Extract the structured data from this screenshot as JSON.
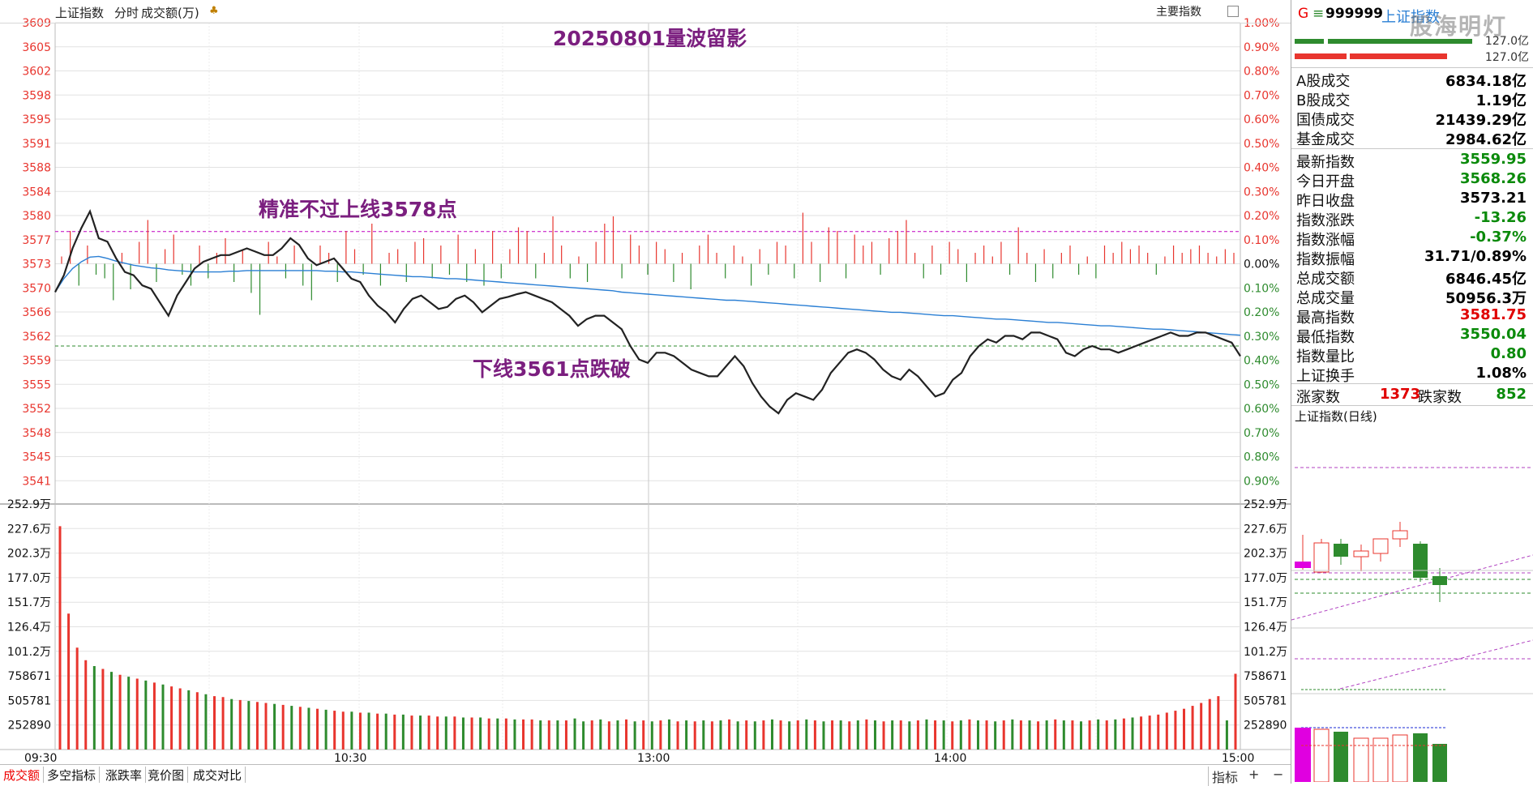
{
  "header": {
    "index_name": "上证指数",
    "mode": "分时",
    "volume_label": "成交额(万)",
    "right_label": "主要指数"
  },
  "annotations": {
    "title": "20250801量波留影",
    "upper_note": "精准不过上线3578点",
    "lower_note": "下线3561点跌破"
  },
  "chart_data": {
    "type": "line",
    "left_axis": [
      "3609",
      "3605",
      "3602",
      "3598",
      "3595",
      "3591",
      "3588",
      "3584",
      "3580",
      "3577",
      "3573",
      "3570",
      "3566",
      "3562",
      "3559",
      "3555",
      "3552",
      "3548",
      "3545",
      "3541"
    ],
    "right_axis": [
      "1.00%",
      "0.90%",
      "0.80%",
      "0.70%",
      "0.60%",
      "0.50%",
      "0.40%",
      "0.30%",
      "0.20%",
      "0.10%",
      "0.00%",
      "0.10%",
      "0.20%",
      "0.30%",
      "0.40%",
      "0.50%",
      "0.60%",
      "0.70%",
      "0.80%",
      "0.90%"
    ],
    "volume_axis": [
      "252.9万",
      "227.6万",
      "202.3万",
      "177.0万",
      "151.7万",
      "126.4万",
      "101.2万",
      "758671",
      "505781",
      "252890"
    ],
    "time_labels": [
      "09:30",
      "10:30",
      "13:00",
      "14:00",
      "15:00"
    ],
    "prev_close": 3573.21,
    "upper_line": 3578,
    "lower_line": 3561,
    "price_series": [
      3569.0,
      3571.5,
      3575.5,
      3578.5,
      3581.0,
      3577.0,
      3576.5,
      3574.0,
      3572.0,
      3571.5,
      3570.0,
      3569.5,
      3567.5,
      3565.5,
      3568.5,
      3570.5,
      3572.5,
      3573.5,
      3574.0,
      3574.5,
      3574.5,
      3575.0,
      3575.5,
      3575.0,
      3574.5,
      3574.5,
      3575.5,
      3577.0,
      3576.0,
      3574.0,
      3573.0,
      3573.5,
      3574.0,
      3572.5,
      3571.0,
      3570.5,
      3568.5,
      3567.0,
      3566.0,
      3564.5,
      3566.5,
      3568.0,
      3568.5,
      3567.5,
      3566.5,
      3566.8,
      3568.0,
      3568.5,
      3567.5,
      3566.0,
      3567.0,
      3568.0,
      3568.3,
      3568.7,
      3569.0,
      3568.5,
      3568.0,
      3567.5,
      3566.5,
      3565.5,
      3564.0,
      3565.0,
      3565.5,
      3565.5,
      3564.5,
      3563.5,
      3561.0,
      3559.0,
      3558.5,
      3560.0,
      3560.0,
      3559.5,
      3558.5,
      3557.5,
      3557.0,
      3556.5,
      3556.5,
      3558.0,
      3559.5,
      3558.0,
      3555.5,
      3553.5,
      3552.0,
      3551.0,
      3553.0,
      3554.0,
      3553.5,
      3553.0,
      3554.5,
      3557.0,
      3558.5,
      3560.0,
      3560.5,
      3560.0,
      3559.0,
      3557.5,
      3556.5,
      3556.0,
      3557.5,
      3556.5,
      3555.0,
      3553.5,
      3554.0,
      3556.0,
      3557.0,
      3559.5,
      3561.0,
      3562.0,
      3561.5,
      3562.5,
      3562.5,
      3562.0,
      3563.0,
      3563.0,
      3562.5,
      3562.0,
      3560.0,
      3559.5,
      3560.5,
      3561.0,
      3560.5,
      3560.5,
      3560.0,
      3560.5,
      3561.0,
      3561.5,
      3562.0,
      3562.5,
      3563.0,
      3562.5,
      3562.5,
      3563.0,
      3563.0,
      3562.5,
      3562.0,
      3561.5,
      3559.5
    ],
    "avg_series": [
      3569.0,
      3571.0,
      3572.5,
      3573.5,
      3574.2,
      3574.3,
      3574.0,
      3573.6,
      3573.3,
      3573.0,
      3572.8,
      3572.6,
      3572.5,
      3572.3,
      3572.2,
      3572.1,
      3572.0,
      3572.0,
      3572.0,
      3572.0,
      3572.1,
      3572.1,
      3572.2,
      3572.2,
      3572.2,
      3572.2,
      3572.2,
      3572.2,
      3572.2,
      3572.2,
      3572.2,
      3572.1,
      3572.1,
      3572.0,
      3572.0,
      3571.9,
      3571.8,
      3571.7,
      3571.6,
      3571.5,
      3571.4,
      3571.3,
      3571.3,
      3571.2,
      3571.1,
      3571.0,
      3571.0,
      3570.9,
      3570.8,
      3570.7,
      3570.6,
      3570.5,
      3570.4,
      3570.3,
      3570.2,
      3570.1,
      3570.0,
      3569.9,
      3569.8,
      3569.7,
      3569.6,
      3569.5,
      3569.4,
      3569.3,
      3569.2,
      3569.0,
      3568.9,
      3568.8,
      3568.7,
      3568.6,
      3568.5,
      3568.4,
      3568.3,
      3568.2,
      3568.1,
      3568.0,
      3567.9,
      3567.8,
      3567.8,
      3567.7,
      3567.6,
      3567.5,
      3567.4,
      3567.3,
      3567.2,
      3567.1,
      3567.0,
      3566.9,
      3566.8,
      3566.7,
      3566.6,
      3566.5,
      3566.4,
      3566.3,
      3566.2,
      3566.1,
      3566.0,
      3566.0,
      3565.9,
      3565.8,
      3565.7,
      3565.6,
      3565.5,
      3565.5,
      3565.4,
      3565.3,
      3565.2,
      3565.1,
      3565.0,
      3565.0,
      3564.9,
      3564.8,
      3564.7,
      3564.6,
      3564.5,
      3564.5,
      3564.4,
      3564.3,
      3564.2,
      3564.1,
      3564.0,
      3564.0,
      3563.9,
      3563.8,
      3563.7,
      3563.6,
      3563.5,
      3563.5,
      3563.4,
      3563.3,
      3563.2,
      3563.1,
      3563.0,
      3562.9,
      3562.8,
      3562.7,
      3562.6
    ],
    "volume_values": [
      2.3,
      1.4,
      1.05,
      0.92,
      0.86,
      0.83,
      0.8,
      0.77,
      0.75,
      0.73,
      0.71,
      0.69,
      0.67,
      0.65,
      0.63,
      0.61,
      0.59,
      0.57,
      0.55,
      0.54,
      0.52,
      0.51,
      0.5,
      0.49,
      0.48,
      0.47,
      0.46,
      0.45,
      0.44,
      0.43,
      0.42,
      0.41,
      0.4,
      0.39,
      0.39,
      0.38,
      0.38,
      0.37,
      0.37,
      0.36,
      0.36,
      0.35,
      0.35,
      0.35,
      0.34,
      0.34,
      0.34,
      0.33,
      0.33,
      0.33,
      0.32,
      0.32,
      0.32,
      0.31,
      0.31,
      0.31,
      0.3,
      0.3,
      0.3,
      0.3,
      0.32,
      0.29,
      0.3,
      0.31,
      0.29,
      0.3,
      0.31,
      0.29,
      0.3,
      0.29,
      0.3,
      0.31,
      0.29,
      0.3,
      0.29,
      0.3,
      0.29,
      0.3,
      0.31,
      0.29,
      0.3,
      0.29,
      0.3,
      0.31,
      0.3,
      0.29,
      0.3,
      0.31,
      0.3,
      0.29,
      0.3,
      0.3,
      0.29,
      0.3,
      0.31,
      0.3,
      0.29,
      0.3,
      0.3,
      0.29,
      0.3,
      0.31,
      0.3,
      0.3,
      0.29,
      0.3,
      0.31,
      0.3,
      0.3,
      0.29,
      0.3,
      0.31,
      0.3,
      0.3,
      0.29,
      0.3,
      0.31,
      0.3,
      0.3,
      0.29,
      0.3,
      0.31,
      0.3,
      0.31,
      0.32,
      0.33,
      0.34,
      0.35,
      0.36,
      0.38,
      0.4,
      0.42,
      0.45,
      0.48,
      0.52,
      0.55,
      0.3,
      0.78
    ],
    "volume_up": [
      1,
      1,
      1,
      1,
      0,
      1,
      0,
      1,
      0,
      1,
      0,
      1,
      0,
      1,
      1,
      0,
      1,
      0,
      1,
      1,
      0,
      1,
      0,
      1,
      1,
      0,
      1,
      0,
      1,
      0,
      1,
      0,
      1,
      1,
      0,
      1,
      0,
      1,
      0,
      1,
      0,
      1,
      0,
      1,
      1,
      0,
      1,
      0,
      1,
      0,
      1,
      0,
      1,
      0,
      1,
      1,
      0,
      1,
      0,
      1,
      0,
      0,
      1,
      0,
      1,
      0,
      1,
      0,
      1,
      0,
      1,
      0,
      1,
      0,
      1,
      0,
      1,
      0,
      1,
      0,
      1,
      0,
      1,
      0,
      1,
      0,
      1,
      0,
      1,
      0,
      1,
      0,
      1,
      0,
      1,
      0,
      1,
      0,
      1,
      0,
      1,
      0,
      1,
      0,
      1,
      0,
      1,
      0,
      1,
      0,
      1,
      0,
      1,
      0,
      1,
      0,
      1,
      0,
      1,
      0,
      1,
      0,
      1,
      0,
      1,
      0,
      1,
      1,
      1,
      1,
      1,
      1,
      1,
      1,
      1,
      1,
      0,
      1
    ],
    "breadth_bars": [
      0.2,
      0.9,
      -0.6,
      0.5,
      -0.3,
      -0.4,
      -1.0,
      0.3,
      -0.7,
      0.6,
      1.2,
      -0.5,
      0.4,
      0.8,
      -0.3,
      -0.6,
      0.5,
      -0.4,
      0.3,
      0.7,
      -0.5,
      0.4,
      -0.8,
      -1.4,
      0.6,
      0.2,
      -0.4,
      0.5,
      -0.6,
      -1.0,
      0.5,
      0.3,
      -0.5,
      0.9,
      0.4,
      -0.3,
      1.1,
      -0.6,
      0.3,
      0.4,
      -0.5,
      0.6,
      0.7,
      -0.4,
      0.5,
      -0.3,
      0.8,
      -0.5,
      0.4,
      -0.6,
      0.9,
      -0.4,
      0.4,
      1.0,
      0.9,
      -0.4,
      0.3,
      1.3,
      0.5,
      -0.4,
      0.2,
      -0.5,
      0.6,
      1.1,
      1.3,
      -0.4,
      0.8,
      0.5,
      -0.3,
      0.6,
      0.4,
      -0.5,
      0.3,
      -0.7,
      0.5,
      0.8,
      0.3,
      -0.4,
      0.5,
      0.2,
      -0.6,
      0.4,
      -0.3,
      0.6,
      0.5,
      -0.4,
      1.4,
      0.6,
      -0.5,
      1.0,
      0.9,
      -0.4,
      0.8,
      0.5,
      0.6,
      -0.3,
      0.7,
      0.9,
      1.2,
      0.3,
      -0.4,
      0.5,
      -0.3,
      0.6,
      0.4,
      -0.5,
      0.3,
      0.5,
      0.2,
      0.6,
      -0.3,
      1.0,
      0.3,
      -0.5,
      0.4,
      -0.4,
      0.3,
      0.5,
      -0.3,
      0.2,
      -0.4,
      0.5,
      0.3,
      0.6,
      0.4,
      0.5,
      0.3,
      -0.3,
      0.2,
      0.5,
      0.3,
      0.4,
      0.5,
      0.3,
      0.2,
      0.4,
      0.3
    ]
  },
  "right_panel": {
    "symbol_prefix": "G",
    "symbol_code": "999999",
    "symbol_name": "上证指数",
    "watermark": "股海明灯",
    "bar_label_1": "127.0亿",
    "bar_label_0": "127.0亿",
    "rows1": [
      {
        "k": "A股成交",
        "v": "6834.18亿"
      },
      {
        "k": "B股成交",
        "v": "1.19亿"
      },
      {
        "k": "国债成交",
        "v": "21439.29亿"
      },
      {
        "k": "基金成交",
        "v": "2984.62亿"
      }
    ],
    "rows2": [
      {
        "k": "最新指数",
        "v": "3559.95",
        "c": "#0a8a0a"
      },
      {
        "k": "今日开盘",
        "v": "3568.26",
        "c": "#0a8a0a"
      },
      {
        "k": "昨日收盘",
        "v": "3573.21",
        "c": "#000000"
      },
      {
        "k": "指数涨跌",
        "v": "-13.26",
        "c": "#0a8a0a"
      },
      {
        "k": "指数涨幅",
        "v": "-0.37%",
        "c": "#0a8a0a"
      },
      {
        "k": "指数振幅",
        "v": "31.71/0.89%",
        "c": "#000000"
      },
      {
        "k": "总成交额",
        "v": "6846.45亿",
        "c": "#000000"
      },
      {
        "k": "总成交量",
        "v": "50956.3万",
        "c": "#000000"
      },
      {
        "k": "最高指数",
        "v": "3581.75",
        "c": "#e00000"
      },
      {
        "k": "最低指数",
        "v": "3550.04",
        "c": "#0a8a0a"
      },
      {
        "k": "指数量比",
        "v": "0.80",
        "c": "#0a8a0a"
      },
      {
        "k": "上证换手",
        "v": "1.08%",
        "c": "#000000"
      }
    ],
    "up_label": "涨家数",
    "up_count": "1373",
    "down_label": "跌家数",
    "down_count": "852",
    "daily_title": "上证指数(日线)"
  },
  "tabs": [
    "成交额",
    "多空指标",
    "涨跌率",
    "竞价图",
    "成交对比"
  ],
  "bottom_right": {
    "ind_label": "指标",
    "plus": "+",
    "minus": "−"
  },
  "colors": {
    "up": "#e8352e",
    "down": "#2e8b2e",
    "price_line": "#222222",
    "avg_line": "#2a7fd4",
    "annotation": "#7b1f7f",
    "upper_dash": "#c000c0",
    "lower_dash": "#2e8b2e"
  }
}
